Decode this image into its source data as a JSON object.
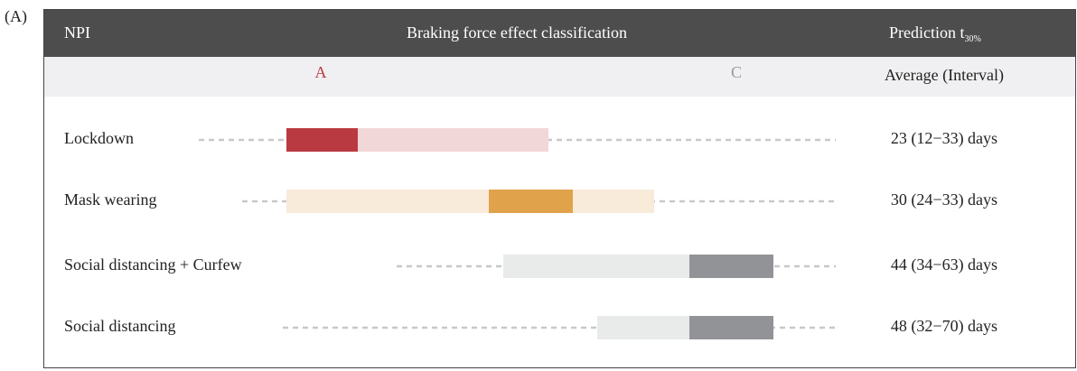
{
  "panel_label": "(A)",
  "header": {
    "npi": "NPI",
    "classification": "Braking force effect classification",
    "prediction": "Prediction t",
    "prediction_subscript": "30%"
  },
  "subheader": {
    "class_a": "A",
    "class_c": "C",
    "average": "Average (Interval)"
  },
  "rows": [
    {
      "npi": "Lockdown",
      "prediction": "23 (12−33) days"
    },
    {
      "npi": "Mask wearing",
      "prediction": "30 (24−33) days"
    },
    {
      "npi": "Social distancing + Curfew",
      "prediction": "44 (34−63) days"
    },
    {
      "npi": "Social distancing",
      "prediction": "48 (32−70) days"
    }
  ]
}
